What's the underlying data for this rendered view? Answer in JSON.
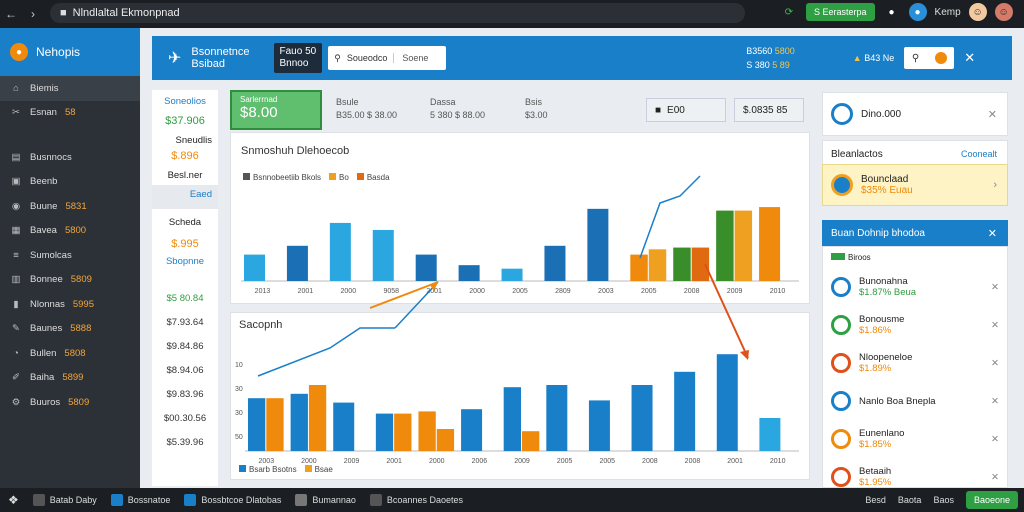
{
  "browser": {
    "back_icon": "back-icon",
    "forward_icon": "forward-icon",
    "url": "Nlndlaltal Ekmonpnad",
    "action_button": "S Eerasterpa",
    "user_name": "Kemp"
  },
  "sidebar": {
    "title": "Nehopis",
    "items": [
      {
        "label": "Biemis",
        "value": "",
        "icon": "home-icon"
      },
      {
        "label": "Esnan",
        "value": "58",
        "icon": "tools-icon"
      },
      {
        "label": "Busnnocs",
        "value": "",
        "icon": "briefcase-icon"
      },
      {
        "label": "Beenb",
        "value": "",
        "icon": "lock-icon"
      },
      {
        "label": "Buune",
        "value": "5831",
        "icon": "globe-icon"
      },
      {
        "label": "Bavea",
        "value": "5800",
        "icon": "grid-icon"
      },
      {
        "label": "Sumolcas",
        "value": "",
        "icon": "list-icon"
      },
      {
        "label": "Bonnee",
        "value": "5809",
        "icon": "table-icon"
      },
      {
        "label": "Nlonnas",
        "value": "5995",
        "icon": "chart-icon"
      },
      {
        "label": "Baunes",
        "value": "5888",
        "icon": "wrench-icon"
      },
      {
        "label": "Bullen",
        "value": "5808",
        "icon": "clock-icon"
      },
      {
        "label": "Baiha",
        "value": "5899",
        "icon": "pen-icon"
      },
      {
        "label": "Buuros",
        "value": "5809",
        "icon": "settings-icon"
      }
    ]
  },
  "header": {
    "title_line1": "Bsonnetnce",
    "title_line2": "Bsibad",
    "dark_box_line1": "Fauo 50",
    "dark_box_line2": "Bnnoo",
    "search_placeholder": "Soueodco",
    "search_button": "Soene",
    "mid_line1_a": "B3560",
    "mid_line1_b": "5800",
    "mid_line2_a": "S 380",
    "mid_line2_b": "5 89",
    "user_label": "B43 Ne"
  },
  "left_panel": {
    "rows": [
      {
        "label": "Soneolios",
        "value": "$37.906"
      },
      {
        "label": "Sneudlis",
        "value": "$.896"
      },
      {
        "label": "Besl.ner",
        "value": "Eaed"
      },
      {
        "label": "Scheda",
        "value": "$.995"
      },
      {
        "label": "Sbopnne",
        "value": ""
      }
    ],
    "values": [
      "$5 80.84",
      "$7.93.64",
      "$9.84.86",
      "$8.94.06",
      "$9.83.96",
      "$00.30.56",
      "$5.39.96"
    ]
  },
  "stats": {
    "main_value": "$8.00",
    "main_label": "Sarlerrnad",
    "s1_label": "Bsule",
    "s1_value": "B35.00 $ 38.00",
    "s2_label": "Dassa",
    "s2_value": "5 380 $ 88.00",
    "s3_label": "Bsis",
    "s3_value": "$3.00",
    "box1": "E00",
    "box2": "$.0835 85"
  },
  "chart_top": {
    "title": "Snmoshuh Dlehoecob",
    "legend": [
      "Bsnnobeetiib Bkols",
      "Bo",
      "Basda"
    ],
    "x_labels": [
      "2013",
      "2001",
      "2000",
      "9058",
      "2001",
      "2000",
      "2005",
      "2809",
      "2003",
      "2005",
      "2008",
      "2009",
      "2010"
    ]
  },
  "chart_bottom": {
    "title": "Sacopnh",
    "y_labels": [
      "10",
      "30",
      "30",
      "50"
    ],
    "legend": [
      "Bsarb Bsotns",
      "Bsae"
    ],
    "x_labels": [
      "2003",
      "2000",
      "2009",
      "2001",
      "2000",
      "2006",
      "2009",
      "2005",
      "2005",
      "2008",
      "2008",
      "2001",
      "2010"
    ]
  },
  "right_panel": {
    "top_card": "Dino.000",
    "section_title": "Bleanlactos",
    "section_link": "Coonealt",
    "highlight_label": "Bounclaad",
    "highlight_value": "$35% Euau",
    "blue_header": "Buan Dohnip bhodoa",
    "badge": "Biroos",
    "items": [
      {
        "name": "Bunonahna",
        "value": "$1.87% Beua"
      },
      {
        "name": "Bonousme",
        "value": "$1.86%"
      },
      {
        "name": "Nloopeneloe",
        "value": "$1.89%"
      },
      {
        "name": "Nanlo Boa Bnepla",
        "value": ""
      },
      {
        "name": "Eunenlano",
        "value": "$1.85%"
      },
      {
        "name": "Betaaih",
        "value": "$1.95%"
      }
    ]
  },
  "taskbar": {
    "items": [
      "Batab Daby",
      "Bossnatoe",
      "Bossbtcoe Dlatobas",
      "Bumannao",
      "Bcoannes Daoetes"
    ],
    "right_items": [
      "Besd",
      "Baota",
      "Baos"
    ],
    "button": "Baoeone"
  },
  "chart_data": [
    {
      "type": "bar",
      "title": "Snmoshuh Dlehoecob",
      "categories": [
        "2013",
        "2001",
        "2000",
        "9058",
        "2001",
        "2000",
        "2005",
        "2809",
        "2003",
        "2005",
        "2008",
        "2009",
        "2010"
      ],
      "series": [
        {
          "name": "Bsnnobeetiib Bkols",
          "values": [
            30,
            40,
            66,
            58,
            30,
            18,
            14,
            40,
            82,
            30,
            38,
            80,
            84
          ]
        },
        {
          "name": "Bo",
          "values": [
            0,
            0,
            0,
            0,
            0,
            0,
            0,
            0,
            0,
            36,
            0,
            80,
            0
          ]
        },
        {
          "name": "Basda",
          "values": [
            0,
            0,
            0,
            0,
            0,
            0,
            0,
            0,
            0,
            0,
            38,
            0,
            0
          ]
        }
      ],
      "ylim": [
        0,
        100
      ]
    },
    {
      "type": "bar",
      "title": "Sacopnh",
      "categories": [
        "2003",
        "2000",
        "2009",
        "2001",
        "2000",
        "2006",
        "2009",
        "2005",
        "2005",
        "2008",
        "2008",
        "2001",
        "2010"
      ],
      "series": [
        {
          "name": "Bsarb Bsotns",
          "values": [
            48,
            52,
            44,
            34,
            36,
            38,
            58,
            60,
            46,
            60,
            72,
            88,
            30
          ]
        },
        {
          "name": "Bsae",
          "values": [
            48,
            60,
            0,
            34,
            20,
            0,
            18,
            0,
            0,
            0,
            0,
            0,
            0
          ]
        }
      ],
      "ylim": [
        0,
        100
      ]
    }
  ]
}
